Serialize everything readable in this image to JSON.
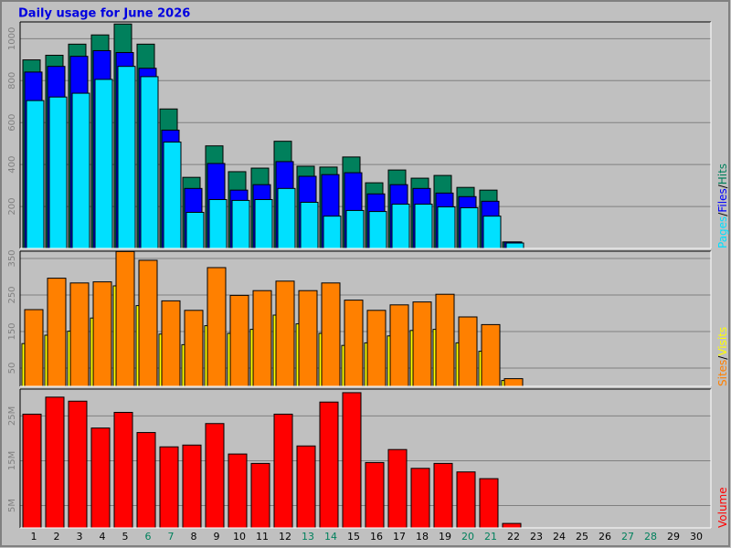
{
  "chart_data": [
    {
      "type": "bar",
      "title": "Daily usage for June 2026",
      "ylim": [
        0,
        1080
      ],
      "yticks": [
        200,
        400,
        600,
        800,
        1000
      ],
      "grid": true,
      "legend_separator": "/",
      "series": [
        {
          "name": "Hits",
          "color": "#00805c",
          "values": [
            899,
            921,
            974,
            1018,
            1070,
            974,
            665,
            339,
            489,
            366,
            383,
            511,
            392,
            388,
            436,
            313,
            374,
            335,
            348,
            291,
            278,
            31,
            null,
            null,
            null,
            null,
            null,
            null,
            null,
            null
          ]
        },
        {
          "name": "Files",
          "color": "#0000ff",
          "values": [
            841,
            868,
            916,
            943,
            934,
            859,
            564,
            286,
            405,
            278,
            304,
            414,
            344,
            352,
            361,
            260,
            304,
            286,
            264,
            247,
            225,
            31,
            null,
            null,
            null,
            null,
            null,
            null,
            null,
            null
          ]
        },
        {
          "name": "Pages",
          "color": "#00e0ff",
          "values": [
            705,
            722,
            740,
            806,
            868,
            819,
            507,
            172,
            233,
            229,
            233,
            286,
            220,
            154,
            181,
            176,
            211,
            211,
            198,
            194,
            154,
            26,
            null,
            null,
            null,
            null,
            null,
            null,
            null,
            null
          ]
        }
      ]
    },
    {
      "type": "bar",
      "ylim": [
        0,
        370
      ],
      "yticks": [
        50,
        150,
        250,
        350
      ],
      "grid": true,
      "legend_separator": "/",
      "series": [
        {
          "name": "Visits",
          "color": "#ffff00",
          "values": [
            117,
            140,
            151,
            187,
            275,
            221,
            143,
            114,
            166,
            145,
            156,
            195,
            171,
            145,
            112,
            119,
            138,
            153,
            156,
            119,
            96,
            16,
            null,
            null,
            null,
            null,
            null,
            null,
            null,
            null
          ]
        },
        {
          "name": "Sites",
          "color": "#ff8000",
          "values": [
            210,
            296,
            283,
            286,
            369,
            345,
            234,
            208,
            325,
            249,
            262,
            288,
            262,
            283,
            236,
            208,
            223,
            231,
            252,
            190,
            169,
            21,
            null,
            null,
            null,
            null,
            null,
            null,
            null,
            null
          ]
        }
      ]
    },
    {
      "type": "bar",
      "ylim": [
        0,
        31
      ],
      "yticks": [
        {
          "value": 5,
          "label": "5M"
        },
        {
          "value": 15,
          "label": "15M"
        },
        {
          "value": 25,
          "label": "25M"
        }
      ],
      "grid": true,
      "categories": [
        "1",
        "2",
        "3",
        "4",
        "5",
        "6",
        "7",
        "8",
        "9",
        "10",
        "11",
        "12",
        "13",
        "14",
        "15",
        "16",
        "17",
        "18",
        "19",
        "20",
        "21",
        "22",
        "23",
        "24",
        "25",
        "26",
        "27",
        "28",
        "29",
        "30"
      ],
      "category_colors": [
        "#000000",
        "#000000",
        "#000000",
        "#000000",
        "#000000",
        "#00805c",
        "#00805c",
        "#000000",
        "#000000",
        "#000000",
        "#000000",
        "#000000",
        "#00805c",
        "#00805c",
        "#000000",
        "#000000",
        "#000000",
        "#000000",
        "#000000",
        "#00805c",
        "#00805c",
        "#000000",
        "#000000",
        "#000000",
        "#000000",
        "#000000",
        "#00805c",
        "#00805c",
        "#000000",
        "#000000"
      ],
      "series": [
        {
          "name": "Volume",
          "color": "#ff0000",
          "values": [
            25.4,
            29.2,
            28.3,
            22.3,
            25.8,
            21.3,
            18.1,
            18.5,
            23.3,
            16.5,
            14.4,
            25.4,
            18.3,
            28.1,
            30.2,
            14.6,
            17.5,
            13.3,
            14.4,
            12.5,
            11.0,
            1.0,
            null,
            null,
            null,
            null,
            null,
            null,
            null,
            null
          ]
        }
      ]
    }
  ]
}
